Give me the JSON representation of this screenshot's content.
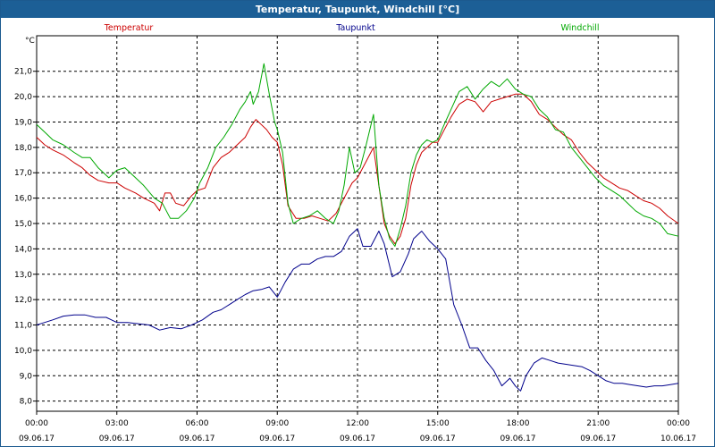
{
  "window": {
    "title": "Temperatur, Taupunkt, Windchill [°C]"
  },
  "chart_data": {
    "type": "line",
    "title": "Temperatur, Taupunkt, Windchill [°C]",
    "ylabel": "°C",
    "xlabel": "",
    "ylim": [
      7.6,
      22.4
    ],
    "xlim": [
      0,
      24
    ],
    "grid": true,
    "legend_position": "top",
    "yticks": [
      "8,0",
      "9,0",
      "10,0",
      "11,0",
      "12,0",
      "13,0",
      "14,0",
      "15,0",
      "16,0",
      "17,0",
      "18,0",
      "19,0",
      "20,0",
      "21,0"
    ],
    "ytick_values": [
      8,
      9,
      10,
      11,
      12,
      13,
      14,
      15,
      16,
      17,
      18,
      19,
      20,
      21
    ],
    "xticks": [
      {
        "time": "00:00",
        "date": "09.06.17",
        "hour": 0
      },
      {
        "time": "03:00",
        "date": "09.06.17",
        "hour": 3
      },
      {
        "time": "06:00",
        "date": "09.06.17",
        "hour": 6
      },
      {
        "time": "09:00",
        "date": "09.06.17",
        "hour": 9
      },
      {
        "time": "12:00",
        "date": "09.06.17",
        "hour": 12
      },
      {
        "time": "15:00",
        "date": "09.06.17",
        "hour": 15
      },
      {
        "time": "18:00",
        "date": "09.06.17",
        "hour": 18
      },
      {
        "time": "21:00",
        "date": "09.06.17",
        "hour": 21
      },
      {
        "time": "00:00",
        "date": "10.06.17",
        "hour": 24
      }
    ],
    "series": [
      {
        "name": "Temperatur",
        "color": "#cc0000",
        "x": [
          0,
          0.3,
          0.6,
          1,
          1.4,
          1.7,
          2,
          2.3,
          2.7,
          3,
          3.3,
          3.7,
          4,
          4.4,
          4.6,
          4.8,
          5,
          5.2,
          5.5,
          5.8,
          6,
          6.3,
          6.6,
          6.9,
          7.2,
          7.5,
          7.8,
          8,
          8.2,
          8.4,
          8.6,
          8.8,
          9,
          9.2,
          9.4,
          9.7,
          10,
          10.3,
          10.6,
          10.9,
          11.2,
          11.5,
          11.8,
          12,
          12.3,
          12.6,
          12.8,
          13,
          13.2,
          13.4,
          13.6,
          13.8,
          14,
          14.2,
          14.4,
          14.6,
          14.8,
          15,
          15.2,
          15.5,
          15.8,
          16.1,
          16.4,
          16.7,
          17,
          17.3,
          17.6,
          17.9,
          18.2,
          18.5,
          18.8,
          19.1,
          19.4,
          19.7,
          20,
          20.3,
          20.6,
          20.9,
          21.2,
          21.5,
          21.8,
          22.1,
          22.4,
          22.7,
          23,
          23.3,
          23.6,
          24
        ],
        "y": [
          18.4,
          18.1,
          17.9,
          17.7,
          17.4,
          17.2,
          16.9,
          16.7,
          16.6,
          16.6,
          16.4,
          16.2,
          16.0,
          15.8,
          15.5,
          16.2,
          16.2,
          15.8,
          15.7,
          16.1,
          16.3,
          16.4,
          17.2,
          17.6,
          17.8,
          18.1,
          18.4,
          18.8,
          19.1,
          18.9,
          18.7,
          18.4,
          18.2,
          17.3,
          15.7,
          15.2,
          15.2,
          15.3,
          15.2,
          15.1,
          15.4,
          16.0,
          16.6,
          16.8,
          17.4,
          18.0,
          16.5,
          15.0,
          14.5,
          14.2,
          14.5,
          15.2,
          16.5,
          17.3,
          17.8,
          18.0,
          18.2,
          18.2,
          18.6,
          19.2,
          19.7,
          19.9,
          19.8,
          19.4,
          19.8,
          19.9,
          20.0,
          20.1,
          20.1,
          19.8,
          19.3,
          19.1,
          18.8,
          18.5,
          18.3,
          17.8,
          17.4,
          17.1,
          16.8,
          16.6,
          16.4,
          16.3,
          16.1,
          15.9,
          15.8,
          15.6,
          15.3,
          15.0
        ]
      },
      {
        "name": "Taupunkt",
        "color": "#00008b",
        "x": [
          0,
          0.3,
          0.6,
          1,
          1.4,
          1.8,
          2.2,
          2.6,
          3,
          3.4,
          3.8,
          4.2,
          4.6,
          5,
          5.4,
          5.8,
          6.2,
          6.6,
          6.9,
          7.2,
          7.5,
          7.8,
          8.1,
          8.4,
          8.7,
          9,
          9.3,
          9.6,
          9.9,
          10.2,
          10.5,
          10.8,
          11.1,
          11.4,
          11.7,
          12,
          12.2,
          12.5,
          12.8,
          13,
          13.3,
          13.6,
          13.9,
          14.1,
          14.4,
          14.7,
          15,
          15.3,
          15.6,
          15.9,
          16.2,
          16.5,
          16.8,
          17.1,
          17.4,
          17.7,
          17.9,
          18.1,
          18.3,
          18.6,
          18.9,
          19.2,
          19.5,
          19.8,
          20.1,
          20.4,
          20.7,
          21,
          21.3,
          21.6,
          21.9,
          22.2,
          22.5,
          22.8,
          23.1,
          23.4,
          23.7,
          24
        ],
        "y": [
          11.0,
          11.1,
          11.2,
          11.35,
          11.4,
          11.4,
          11.3,
          11.3,
          11.1,
          11.1,
          11.05,
          11.0,
          10.8,
          10.9,
          10.85,
          11.0,
          11.2,
          11.5,
          11.6,
          11.8,
          12.0,
          12.2,
          12.35,
          12.4,
          12.5,
          12.1,
          12.7,
          13.2,
          13.4,
          13.4,
          13.6,
          13.7,
          13.7,
          13.9,
          14.5,
          14.8,
          14.1,
          14.1,
          14.7,
          14.2,
          12.9,
          13.1,
          13.8,
          14.4,
          14.7,
          14.3,
          14.0,
          13.6,
          11.8,
          11.0,
          10.1,
          10.1,
          9.6,
          9.2,
          8.6,
          8.9,
          8.6,
          8.4,
          9.0,
          9.5,
          9.7,
          9.6,
          9.5,
          9.45,
          9.4,
          9.35,
          9.2,
          9.0,
          8.8,
          8.7,
          8.7,
          8.65,
          8.6,
          8.55,
          8.6,
          8.6,
          8.65,
          8.7
        ]
      },
      {
        "name": "Windchill",
        "color": "#00a800",
        "x": [
          0,
          0.3,
          0.6,
          1,
          1.4,
          1.7,
          2,
          2.3,
          2.7,
          3,
          3.3,
          3.7,
          4,
          4.4,
          4.7,
          5,
          5.3,
          5.6,
          5.9,
          6.1,
          6.4,
          6.7,
          7,
          7.3,
          7.6,
          7.8,
          8,
          8.1,
          8.3,
          8.5,
          8.7,
          8.9,
          9,
          9.2,
          9.4,
          9.6,
          9.9,
          10.2,
          10.5,
          10.8,
          11.1,
          11.3,
          11.5,
          11.7,
          11.9,
          12.1,
          12.3,
          12.6,
          12.8,
          13,
          13.2,
          13.4,
          13.6,
          13.8,
          14,
          14.2,
          14.4,
          14.6,
          14.8,
          15,
          15.2,
          15.5,
          15.8,
          16.1,
          16.4,
          16.7,
          17,
          17.3,
          17.6,
          17.9,
          18.2,
          18.5,
          18.8,
          19.1,
          19.4,
          19.7,
          20,
          20.3,
          20.6,
          20.9,
          21.2,
          21.5,
          21.8,
          22.1,
          22.4,
          22.7,
          23,
          23.3,
          23.6,
          24
        ],
        "y": [
          18.9,
          18.6,
          18.3,
          18.1,
          17.8,
          17.6,
          17.6,
          17.2,
          16.8,
          17.1,
          17.2,
          16.8,
          16.5,
          16.0,
          15.8,
          15.2,
          15.2,
          15.5,
          16.0,
          16.6,
          17.2,
          18.0,
          18.4,
          18.9,
          19.5,
          19.8,
          20.2,
          19.7,
          20.2,
          21.3,
          20.1,
          19.0,
          18.7,
          17.8,
          15.8,
          15.0,
          15.2,
          15.3,
          15.5,
          15.2,
          15.0,
          15.5,
          16.5,
          18.0,
          17.0,
          17.2,
          18.0,
          19.3,
          16.5,
          15.2,
          14.4,
          14.1,
          14.8,
          15.7,
          17.0,
          17.7,
          18.1,
          18.3,
          18.2,
          18.3,
          18.8,
          19.5,
          20.2,
          20.4,
          19.9,
          20.3,
          20.6,
          20.4,
          20.7,
          20.3,
          20.1,
          20.0,
          19.5,
          19.2,
          18.7,
          18.6,
          18.0,
          17.6,
          17.2,
          16.8,
          16.5,
          16.3,
          16.1,
          15.8,
          15.5,
          15.3,
          15.2,
          15.0,
          14.6,
          14.5
        ]
      }
    ]
  }
}
